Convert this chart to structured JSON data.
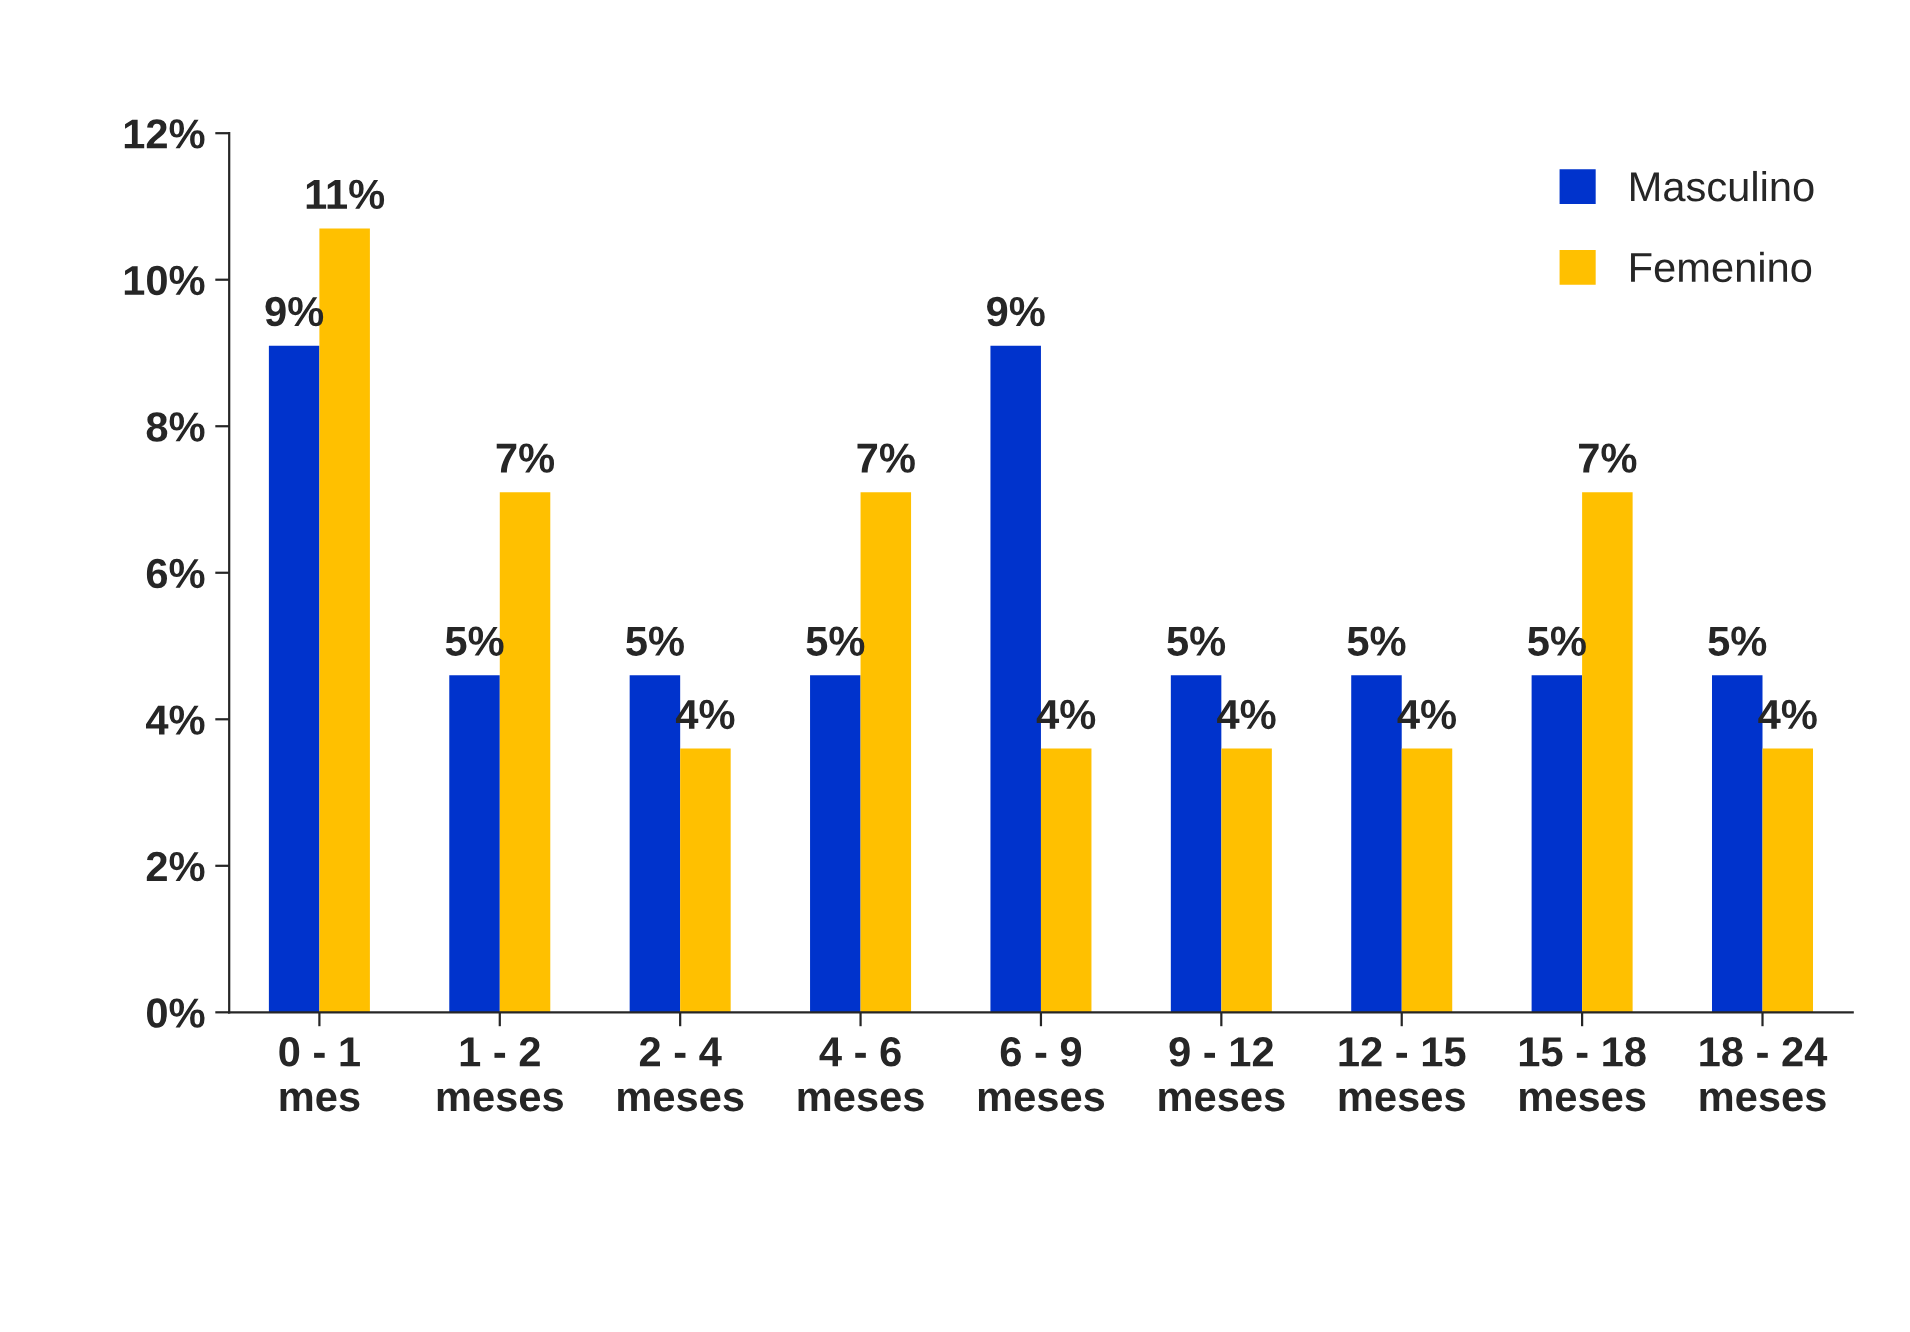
{
  "chart_data": {
    "type": "bar",
    "categories": [
      "0 - 1\nmes",
      "1 - 2\nmeses",
      "2 - 4\nmeses",
      "4 - 6\nmeses",
      "6 - 9\nmeses",
      "9 - 12\nmeses",
      "12 - 15\nmeses",
      "15 - 18\nmeses",
      "18 - 24\nmeses"
    ],
    "series": [
      {
        "name": "Masculino",
        "color": "#0033cc",
        "values": [
          9.1,
          4.6,
          4.6,
          4.6,
          9.1,
          4.6,
          4.6,
          4.6,
          4.6
        ],
        "value_labels": [
          "9%",
          "5%",
          "5%",
          "5%",
          "9%",
          "5%",
          "5%",
          "5%",
          "5%"
        ]
      },
      {
        "name": "Femenino",
        "color": "#ffc000",
        "values": [
          10.7,
          7.1,
          3.6,
          7.1,
          3.6,
          3.6,
          3.6,
          7.1,
          3.6
        ],
        "value_labels": [
          "11%",
          "7%",
          "4%",
          "7%",
          "4%",
          "4%",
          "4%",
          "7%",
          "4%"
        ]
      }
    ],
    "ylim": [
      0,
      12
    ],
    "yticks": [
      {
        "value": 0,
        "label": "0%"
      },
      {
        "value": 2,
        "label": "2%"
      },
      {
        "value": 4,
        "label": "4%"
      },
      {
        "value": 6,
        "label": "6%"
      },
      {
        "value": 8,
        "label": "8%"
      },
      {
        "value": 10,
        "label": "10%"
      },
      {
        "value": 12,
        "label": "12%"
      }
    ],
    "grid": false,
    "legend": "top right"
  }
}
